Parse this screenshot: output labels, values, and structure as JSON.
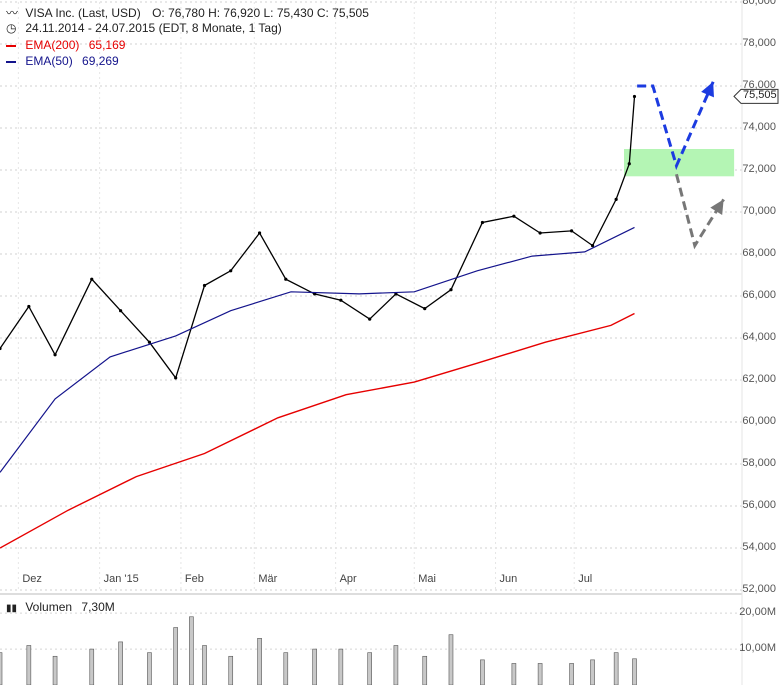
{
  "header": {
    "title": "VISA Inc. (Last, USD)",
    "ohlc": "O: 76,780  H: 76,920  L: 75,430  C: 75,505",
    "range": "24.11.2014 - 24.07.2015 (EDT, 8 Monate, 1 Tag)",
    "ema200_label": "EMA(200)",
    "ema200_value": "65,169",
    "ema50_label": "EMA(50)",
    "ema50_value": "69,269",
    "volume_label": "Volumen",
    "volume_value": "7,30M",
    "last_price": "75,505"
  },
  "colors": {
    "ema200": "#e60000",
    "ema50": "#14148c",
    "candle": "#000000",
    "zone": "#b4f5b4",
    "forecast_primary": "#1c3be0",
    "forecast_alt": "#777777",
    "volume": "#c8c8c8"
  },
  "chart_data": {
    "type": "line",
    "ylim": [
      52,
      80
    ],
    "y_ticks": [
      "80,000",
      "78,000",
      "76,000",
      "74,000",
      "72,000",
      "70,000",
      "68,000",
      "66,000",
      "64,000",
      "62,000",
      "60,000",
      "58,000",
      "56,000",
      "54,000",
      "52,000"
    ],
    "y_tick_values": [
      80,
      78,
      76,
      74,
      72,
      70,
      68,
      66,
      64,
      62,
      60,
      58,
      56,
      54,
      52
    ],
    "x_ticks": [
      {
        "label": "Dez",
        "date": "2014-12-01"
      },
      {
        "label": "Jan '15",
        "date": "2015-01-01"
      },
      {
        "label": "Feb",
        "date": "2015-02-01"
      },
      {
        "label": "Mär",
        "date": "2015-03-01"
      },
      {
        "label": "Apr",
        "date": "2015-04-01"
      },
      {
        "label": "Mai",
        "date": "2015-05-01"
      },
      {
        "label": "Jun",
        "date": "2015-06-01"
      },
      {
        "label": "Jul",
        "date": "2015-07-01"
      }
    ],
    "x_range": [
      "2014-11-24",
      "2015-07-24"
    ],
    "price_series": {
      "name": "VISA Inc.",
      "dates": [
        "2014-11-24",
        "2014-12-05",
        "2014-12-15",
        "2014-12-29",
        "2015-01-09",
        "2015-01-20",
        "2015-01-30",
        "2015-02-10",
        "2015-02-20",
        "2015-03-03",
        "2015-03-13",
        "2015-03-24",
        "2015-04-03",
        "2015-04-14",
        "2015-04-24",
        "2015-05-05",
        "2015-05-15",
        "2015-05-27",
        "2015-06-08",
        "2015-06-18",
        "2015-06-30",
        "2015-07-08",
        "2015-07-17",
        "2015-07-22",
        "2015-07-24"
      ],
      "values": [
        63.5,
        65.5,
        63.2,
        66.8,
        65.3,
        63.8,
        62.1,
        66.5,
        67.2,
        69.0,
        66.8,
        66.1,
        65.8,
        64.9,
        66.1,
        65.4,
        66.3,
        69.5,
        69.8,
        69.0,
        69.1,
        68.4,
        70.6,
        72.3,
        75.5
      ]
    },
    "series": [
      {
        "name": "EMA(200)",
        "dates": [
          "2014-11-24",
          "2014-12-20",
          "2015-01-15",
          "2015-02-10",
          "2015-03-10",
          "2015-04-05",
          "2015-05-01",
          "2015-05-25",
          "2015-06-20",
          "2015-07-15",
          "2015-07-24"
        ],
        "values": [
          54.0,
          55.8,
          57.4,
          58.5,
          60.2,
          61.3,
          61.9,
          62.8,
          63.8,
          64.6,
          65.169
        ]
      },
      {
        "name": "EMA(50)",
        "dates": [
          "2014-11-24",
          "2014-12-15",
          "2015-01-05",
          "2015-01-30",
          "2015-02-20",
          "2015-03-15",
          "2015-04-10",
          "2015-05-01",
          "2015-05-25",
          "2015-06-15",
          "2015-07-05",
          "2015-07-24"
        ],
        "values": [
          57.6,
          61.1,
          63.1,
          64.1,
          65.3,
          66.2,
          66.1,
          66.2,
          67.2,
          67.9,
          68.1,
          69.269
        ]
      }
    ],
    "last_price": 75.505,
    "zone": {
      "low": 71.7,
      "high": 73.0,
      "from": "2015-07-20",
      "to": "2015-08-31"
    },
    "forecast_primary": {
      "dates": [
        "2015-07-25",
        "2015-07-31",
        "2015-08-09",
        "2015-08-23"
      ],
      "values": [
        76.0,
        76.0,
        72.2,
        76.2
      ]
    },
    "forecast_alt": {
      "dates": [
        "2015-08-09",
        "2015-08-16",
        "2015-08-27"
      ],
      "values": [
        71.8,
        68.4,
        70.6
      ]
    },
    "volume": {
      "y_ticks": [
        "20,00M",
        "10,00M"
      ],
      "y_tick_values": [
        20,
        10
      ],
      "ylim": [
        0,
        22
      ],
      "dates": [
        "2014-11-24",
        "2014-12-05",
        "2014-12-15",
        "2014-12-29",
        "2015-01-09",
        "2015-01-20",
        "2015-01-30",
        "2015-02-05",
        "2015-02-10",
        "2015-02-20",
        "2015-03-03",
        "2015-03-13",
        "2015-03-24",
        "2015-04-03",
        "2015-04-14",
        "2015-04-24",
        "2015-05-05",
        "2015-05-15",
        "2015-05-27",
        "2015-06-08",
        "2015-06-18",
        "2015-06-30",
        "2015-07-08",
        "2015-07-17",
        "2015-07-24"
      ],
      "values": [
        9,
        11,
        8,
        10,
        12,
        9,
        16,
        19,
        11,
        8,
        13,
        9,
        10,
        10,
        9,
        11,
        8,
        14,
        7,
        6,
        6,
        6,
        7,
        9,
        7.3
      ]
    }
  }
}
